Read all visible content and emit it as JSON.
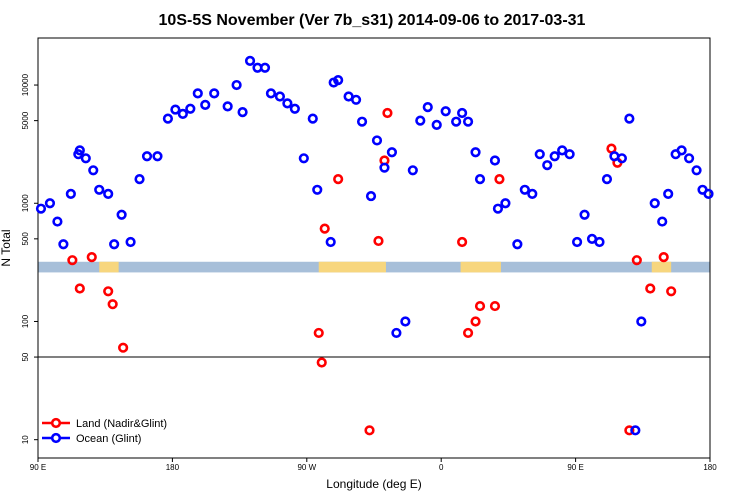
{
  "chart_data": {
    "type": "scatter",
    "title": "10S-5S November (Ver 7b_s31)   2014-09-06 to 2017-03-31",
    "xlabel": "Longitude (deg E)",
    "ylabel": "N Total",
    "x_ticks": [
      {
        "value": 90,
        "label": "90 E"
      },
      {
        "value": 180,
        "label": "180"
      },
      {
        "value": 270,
        "label": "90 W"
      },
      {
        "value": 360,
        "label": "0"
      },
      {
        "value": 450,
        "label": "90 E"
      },
      {
        "value": 540,
        "label": "180"
      }
    ],
    "y_ticks": [
      {
        "value": 10,
        "label": "10"
      },
      {
        "value": 50,
        "label": "50"
      },
      {
        "value": 100,
        "label": "100"
      },
      {
        "value": 500,
        "label": "500"
      },
      {
        "value": 1000,
        "label": "1000"
      },
      {
        "value": 5000,
        "label": "5000"
      },
      {
        "value": 10000,
        "label": "10000"
      }
    ],
    "xlim": [
      90,
      540
    ],
    "ylim": [
      7,
      25000
    ],
    "y_scale": "log",
    "reference_line": 50,
    "map_strip": {
      "y_low": 260,
      "y_high": 320,
      "ocean_color": "#a7bfd9",
      "land_color": "#f7d67e"
    },
    "land_ranges": [
      [
        131,
        144
      ],
      [
        278,
        323
      ],
      [
        373,
        400
      ],
      [
        501,
        514
      ]
    ],
    "legend_position": "bottom-left",
    "series": [
      {
        "name": "Land (Nadir&Glint)",
        "color": "#ff0000",
        "x": [
          113,
          118,
          126,
          137,
          140,
          147,
          278,
          280,
          282,
          291,
          312,
          318,
          322,
          324,
          374,
          378,
          383,
          386,
          396,
          399,
          474,
          478,
          486,
          491,
          500,
          509,
          514
        ],
        "y": [
          330,
          190,
          350,
          180,
          140,
          60,
          80,
          45,
          610,
          1600,
          12,
          480,
          2300,
          5800,
          470,
          80,
          100,
          135,
          135,
          1600,
          2900,
          2200,
          12,
          330,
          190,
          350,
          180
        ]
      },
      {
        "name": "Ocean (Glint)",
        "color": "#0000ff",
        "x": [
          92,
          98,
          103,
          107,
          112,
          117,
          118,
          122,
          127,
          131,
          137,
          141,
          146,
          152,
          158,
          163,
          170,
          177,
          182,
          187,
          192,
          197,
          202,
          208,
          217,
          223,
          227,
          232,
          237,
          242,
          246,
          252,
          257,
          262,
          268,
          274,
          277,
          286,
          288,
          291,
          298,
          303,
          307,
          313,
          317,
          322,
          327,
          330,
          336,
          341,
          346,
          351,
          357,
          363,
          370,
          374,
          378,
          383,
          386,
          396,
          398,
          403,
          411,
          416,
          421,
          426,
          431,
          436,
          441,
          446,
          451,
          456,
          461,
          466,
          471,
          476,
          481,
          486,
          490,
          494,
          503,
          508,
          512,
          517,
          521,
          526,
          531,
          535,
          539
        ],
        "y": [
          900,
          1000,
          700,
          450,
          1200,
          2600,
          2800,
          2400,
          1900,
          1300,
          1200,
          450,
          800,
          470,
          1600,
          2500,
          2500,
          5200,
          6200,
          5700,
          6300,
          8500,
          6800,
          8500,
          6600,
          10000,
          5900,
          16000,
          14000,
          14000,
          8500,
          8000,
          7000,
          6300,
          2400,
          5200,
          1300,
          470,
          10500,
          11000,
          8000,
          7500,
          4900,
          1150,
          3400,
          2000,
          2700,
          80,
          100,
          1900,
          5000,
          6500,
          4600,
          6000,
          4900,
          5800,
          4900,
          2700,
          1600,
          2300,
          900,
          1000,
          450,
          1300,
          1200,
          2600,
          2100,
          2500,
          2800,
          2600,
          470,
          800,
          500,
          470,
          1600,
          2500,
          2400,
          5200,
          12,
          100,
          1000,
          700,
          1200,
          2600,
          2800,
          2400,
          1900,
          1300,
          1200
        ]
      }
    ]
  }
}
